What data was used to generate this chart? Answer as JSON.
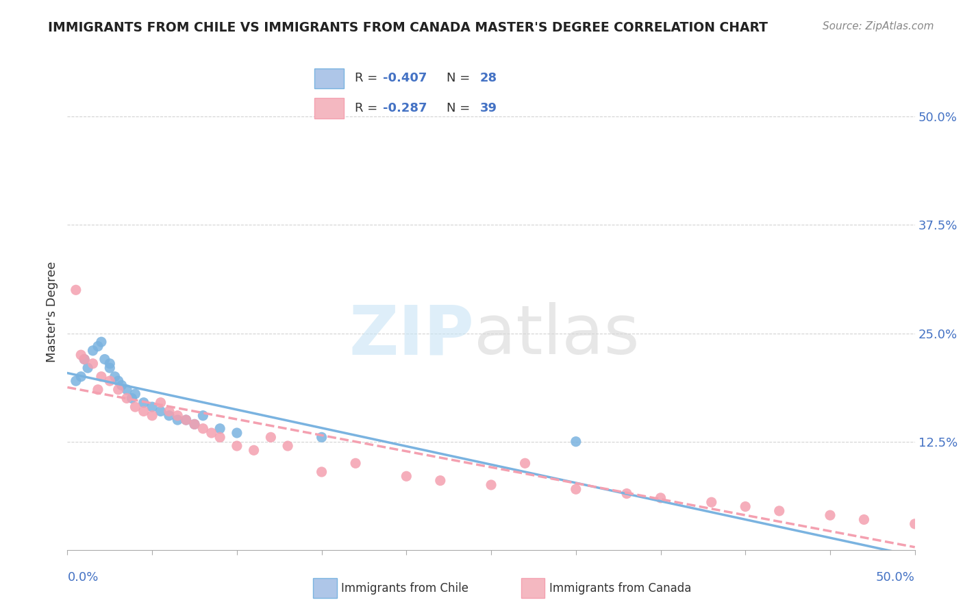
{
  "title": "IMMIGRANTS FROM CHILE VS IMMIGRANTS FROM CANADA MASTER'S DEGREE CORRELATION CHART",
  "source": "Source: ZipAtlas.com",
  "ylabel": "Master's Degree",
  "right_yticks": [
    "50.0%",
    "37.5%",
    "25.0%",
    "12.5%"
  ],
  "right_ytick_vals": [
    0.5,
    0.375,
    0.25,
    0.125
  ],
  "legend_bottom": [
    "Immigrants from Chile",
    "Immigrants from Canada"
  ],
  "chile_color": "#7ab3e0",
  "chile_patch_color": "#aec6e8",
  "canada_color": "#f4a0b0",
  "canada_patch_color": "#f4b8c1",
  "chile_R": "-0.407",
  "chile_N": "28",
  "canada_R": "-0.287",
  "canada_N": "39",
  "chile_points_x": [
    0.005,
    0.008,
    0.01,
    0.012,
    0.015,
    0.018,
    0.02,
    0.022,
    0.025,
    0.025,
    0.028,
    0.03,
    0.032,
    0.035,
    0.038,
    0.04,
    0.045,
    0.05,
    0.055,
    0.06,
    0.065,
    0.07,
    0.075,
    0.08,
    0.09,
    0.1,
    0.15,
    0.3
  ],
  "chile_points_y": [
    0.195,
    0.2,
    0.22,
    0.21,
    0.23,
    0.235,
    0.24,
    0.22,
    0.21,
    0.215,
    0.2,
    0.195,
    0.19,
    0.185,
    0.175,
    0.18,
    0.17,
    0.165,
    0.16,
    0.155,
    0.15,
    0.15,
    0.145,
    0.155,
    0.14,
    0.135,
    0.13,
    0.125
  ],
  "canada_points_x": [
    0.005,
    0.008,
    0.01,
    0.015,
    0.018,
    0.02,
    0.025,
    0.03,
    0.035,
    0.04,
    0.045,
    0.05,
    0.055,
    0.06,
    0.065,
    0.07,
    0.075,
    0.08,
    0.085,
    0.09,
    0.1,
    0.11,
    0.12,
    0.13,
    0.15,
    0.17,
    0.2,
    0.22,
    0.25,
    0.27,
    0.3,
    0.33,
    0.35,
    0.38,
    0.4,
    0.42,
    0.45,
    0.47,
    0.5
  ],
  "canada_points_y": [
    0.3,
    0.225,
    0.22,
    0.215,
    0.185,
    0.2,
    0.195,
    0.185,
    0.175,
    0.165,
    0.16,
    0.155,
    0.17,
    0.16,
    0.155,
    0.15,
    0.145,
    0.14,
    0.135,
    0.13,
    0.12,
    0.115,
    0.13,
    0.12,
    0.09,
    0.1,
    0.085,
    0.08,
    0.075,
    0.1,
    0.07,
    0.065,
    0.06,
    0.055,
    0.05,
    0.045,
    0.04,
    0.035,
    0.03
  ],
  "xlim": [
    0.0,
    0.5
  ],
  "ylim": [
    0.0,
    0.55
  ],
  "grid_color": "#d3d3d3",
  "accent_color": "#4472c4"
}
